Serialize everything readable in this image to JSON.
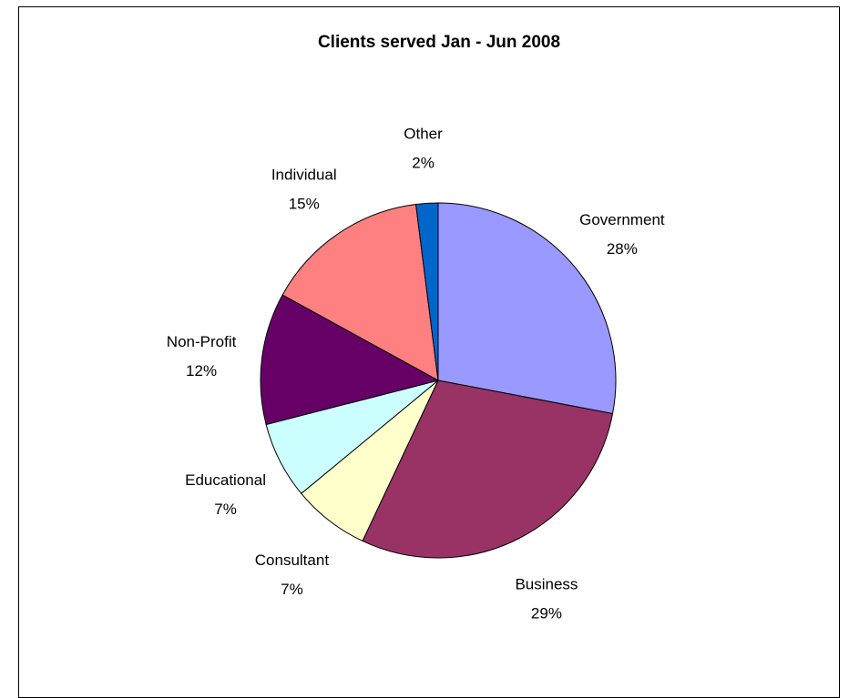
{
  "chart_data": {
    "type": "pie",
    "title": "Clients served Jan - Jun 2008",
    "legend": "none",
    "slices": [
      {
        "category": "Government",
        "value": 28,
        "label": "28%",
        "color": "#9999FF"
      },
      {
        "category": "Business",
        "value": 29,
        "label": "29%",
        "color": "#993366"
      },
      {
        "category": "Consultant",
        "value": 7,
        "label": "7%",
        "color": "#FFFFCC"
      },
      {
        "category": "Educational",
        "value": 7,
        "label": "7%",
        "color": "#CCFFFF"
      },
      {
        "category": "Non-Profit",
        "value": 12,
        "label": "12%",
        "color": "#660066"
      },
      {
        "category": "Individual",
        "value": 15,
        "label": "15%",
        "color": "#FF8080"
      },
      {
        "category": "Other",
        "value": 2,
        "label": "2%",
        "color": "#0066CC"
      }
    ]
  }
}
